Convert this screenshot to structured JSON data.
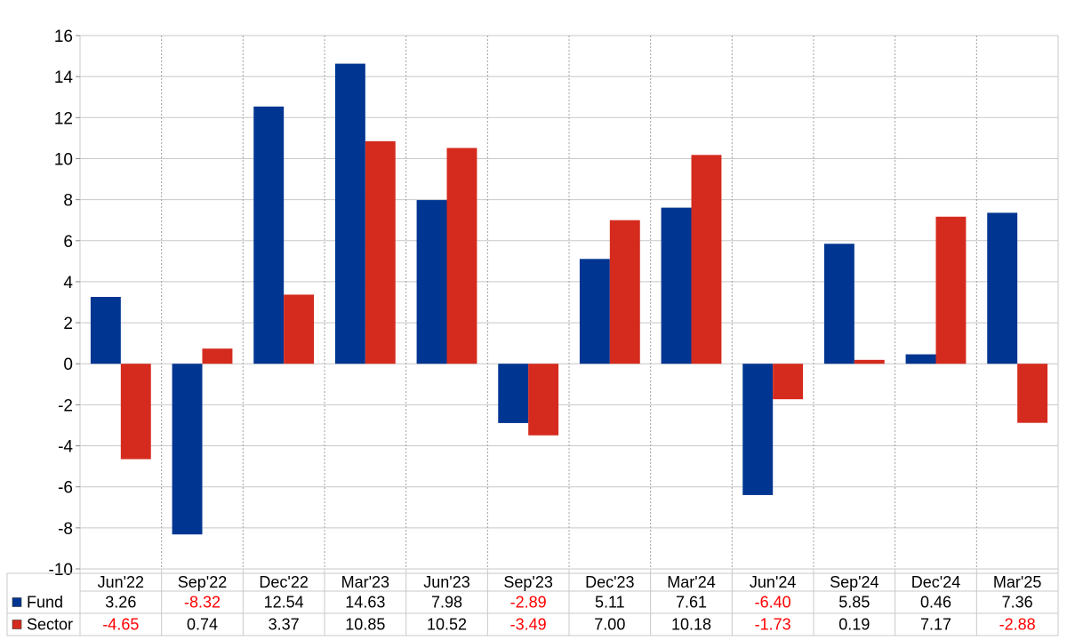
{
  "chart_data": {
    "type": "bar",
    "categories": [
      "Jun'22",
      "Sep'22",
      "Dec'22",
      "Mar'23",
      "Jun'23",
      "Sep'23",
      "Dec'23",
      "Mar'24",
      "Jun'24",
      "Sep'24",
      "Dec'24",
      "Mar'25"
    ],
    "series": [
      {
        "name": "Fund",
        "color": "#003591",
        "values": [
          3.26,
          -8.32,
          12.54,
          14.63,
          7.98,
          -2.89,
          5.11,
          7.61,
          -6.4,
          5.85,
          0.46,
          7.36
        ],
        "labels": [
          "3.26",
          "-8.32",
          "12.54",
          "14.63",
          "7.98",
          "-2.89",
          "5.11",
          "7.61",
          "-6.40",
          "5.85",
          "0.46",
          "7.36"
        ]
      },
      {
        "name": "Sector",
        "color": "#d52b1e",
        "values": [
          -4.65,
          0.74,
          3.37,
          10.85,
          10.52,
          -3.49,
          7.0,
          10.18,
          -1.73,
          0.19,
          7.17,
          -2.88
        ],
        "labels": [
          "-4.65",
          "0.74",
          "3.37",
          "10.85",
          "10.52",
          "-3.49",
          "7.00",
          "10.18",
          "-1.73",
          "0.19",
          "7.17",
          "-2.88"
        ]
      }
    ],
    "ylim": [
      -10,
      16
    ],
    "yticks": [
      "16",
      "14",
      "12",
      "10",
      "8",
      "6",
      "4",
      "2",
      "0",
      "-2",
      "-4",
      "-6",
      "-8",
      "-10"
    ],
    "title": "",
    "xlabel": "",
    "ylabel": "",
    "grid": true,
    "legend": "table-below",
    "negative_label_color": "#ff0000",
    "positive_label_color": "#000000"
  }
}
